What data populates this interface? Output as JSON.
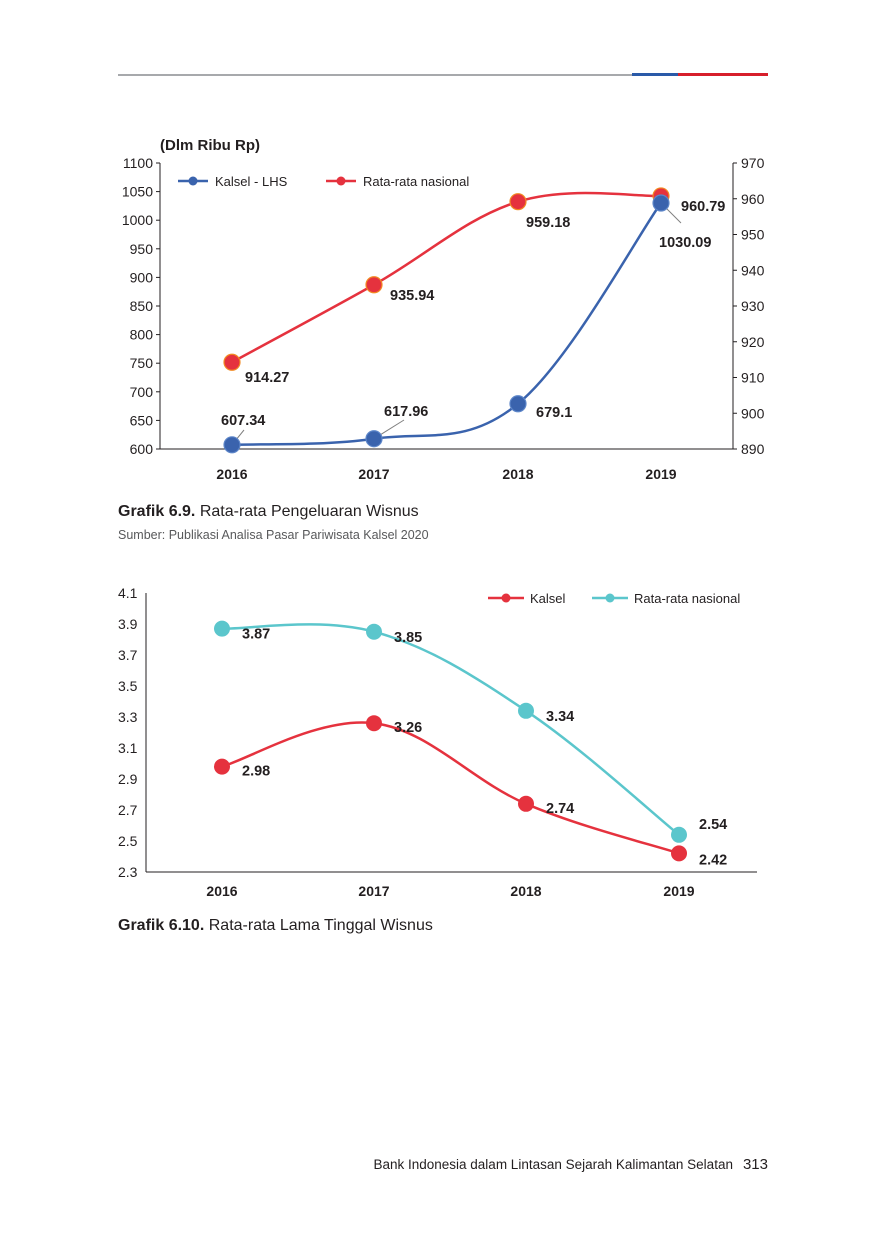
{
  "colors": {
    "header_gray": "#a7a9ac",
    "header_blue": "#2a5aa8",
    "header_red": "#d71f2b"
  },
  "chart_data": [
    {
      "type": "line",
      "ylabel": "(Dlm Ribu Rp)",
      "categories": [
        "2016",
        "2017",
        "2018",
        "2019"
      ],
      "left_axis": {
        "ylim": [
          600,
          1100
        ],
        "ticks": [
          "600",
          "650",
          "700",
          "750",
          "800",
          "850",
          "900",
          "950",
          "1000",
          "1050",
          "1100"
        ]
      },
      "right_axis": {
        "ylim": [
          890,
          970
        ],
        "ticks": [
          "890",
          "900",
          "910",
          "920",
          "930",
          "940",
          "950",
          "960",
          "970"
        ]
      },
      "legend_position": "top-left",
      "grid": false,
      "series": [
        {
          "name": "Kalsel - LHS",
          "axis": "left",
          "color": "#3a63ad",
          "values": [
            607.34,
            617.96,
            679.1,
            1030.09
          ],
          "labels": [
            "607.34",
            "617.96",
            "679.1",
            "1030.09"
          ]
        },
        {
          "name": "Rata-rata nasional",
          "axis": "right",
          "color": "#e5323e",
          "values": [
            914.27,
            935.94,
            959.18,
            960.79
          ],
          "labels": [
            "914.27",
            "935.94",
            "959.18",
            "960.79"
          ]
        }
      ]
    },
    {
      "type": "line",
      "categories": [
        "2016",
        "2017",
        "2018",
        "2019"
      ],
      "left_axis": {
        "ylim": [
          2.3,
          4.1
        ],
        "ticks": [
          "2.3",
          "2.5",
          "2.7",
          "2.9",
          "3.1",
          "3.3",
          "3.5",
          "3.7",
          "3.9",
          "4.1"
        ]
      },
      "legend_position": "top-right",
      "grid": false,
      "series": [
        {
          "name": "Kalsel",
          "axis": "left",
          "color": "#e5323e",
          "values": [
            2.98,
            3.26,
            2.74,
            2.42
          ],
          "labels": [
            "2.98",
            "3.26",
            "2.74",
            "2.42"
          ]
        },
        {
          "name": "Rata-rata nasional",
          "axis": "left",
          "color": "#5bc6cc",
          "values": [
            3.87,
            3.85,
            3.34,
            2.54
          ],
          "labels": [
            "3.87",
            "3.85",
            "3.34",
            "2.54"
          ]
        }
      ]
    }
  ],
  "captions": [
    {
      "number": "Grafik 6.9.",
      "text": "Rata-rata Pengeluaran Wisnus",
      "source": "Sumber: Publikasi Analisa Pasar Pariwisata Kalsel 2020"
    },
    {
      "number": "Grafik 6.10.",
      "text": "Rata-rata Lama Tinggal Wisnus"
    }
  ],
  "footer": {
    "text": "Bank Indonesia dalam Lintasan Sejarah Kalimantan Selatan",
    "page": "313"
  }
}
